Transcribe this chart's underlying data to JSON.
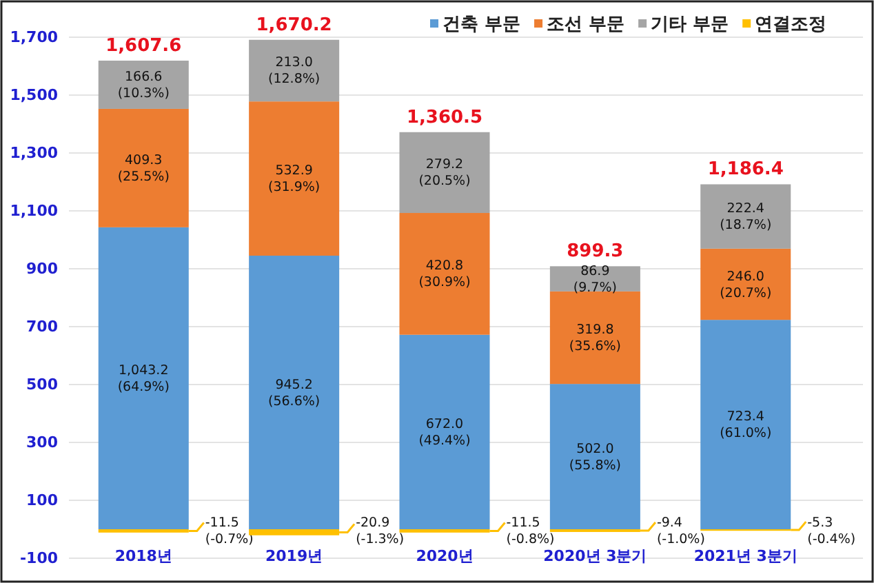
{
  "chart_data": {
    "type": "bar",
    "stacked": true,
    "categories": [
      "2018년",
      "2019년",
      "2020년",
      "2020년 3분기",
      "2021년 3분기"
    ],
    "series": [
      {
        "name": "건축 부문",
        "color": "#5b9bd5",
        "values": [
          1043.2,
          945.2,
          672.0,
          502.0,
          723.4
        ],
        "value_labels": [
          "1,043.2\n(64.9%)",
          "945.2\n(56.6%)",
          "672.0\n(49.4%)",
          "502.0\n(55.8%)",
          "723.4\n(61.0%)"
        ]
      },
      {
        "name": "조선 부문",
        "color": "#ed7d31",
        "values": [
          409.3,
          532.9,
          420.8,
          319.8,
          246.0
        ],
        "value_labels": [
          "409.3\n(25.5%)",
          "532.9\n(31.9%)",
          "420.8\n(30.9%)",
          "319.8\n(35.6%)",
          "246.0\n(20.7%)"
        ]
      },
      {
        "name": "기타 부문",
        "color": "#a5a5a5",
        "values": [
          166.6,
          213.0,
          279.2,
          86.9,
          222.4
        ],
        "value_labels": [
          "166.6\n(10.3%)",
          "213.0\n(12.8%)",
          "279.2\n(20.5%)",
          "86.9\n(9.7%)",
          "222.4\n(18.7%)"
        ]
      },
      {
        "name": "연결조정",
        "color": "#ffc000",
        "values": [
          -11.5,
          -20.9,
          -11.5,
          -9.4,
          -5.3
        ],
        "value_labels": [
          "-11.5\n(-0.7%)",
          "-20.9\n(-1.3%)",
          "-11.5\n(-0.8%)",
          "-9.4\n(-1.0%)",
          "-5.3\n(-0.4%)"
        ]
      }
    ],
    "totals": [
      "1,607.6",
      "1,670.2",
      "1,360.5",
      "899.3",
      "1,186.4"
    ],
    "ylim": [
      -100,
      1700
    ],
    "yticks": [
      -100,
      100,
      300,
      500,
      700,
      {
        "value": 900,
        "label": "900"
      },
      {
        "value": 1100,
        "label": "1,100"
      },
      {
        "value": 1300,
        "label": "1,300"
      },
      {
        "value": 1500,
        "label": "1,500"
      },
      {
        "value": 1700,
        "label": "1,700"
      }
    ],
    "grid": "y",
    "legend": "top right"
  }
}
